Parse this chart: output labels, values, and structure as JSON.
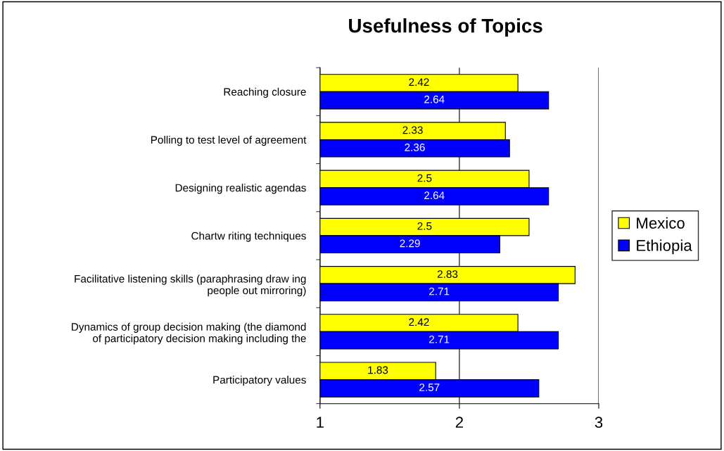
{
  "chart_data": {
    "type": "bar",
    "orientation": "horizontal",
    "title": "Usefulness of Topics",
    "categories": [
      "Reaching closure",
      "Polling to test level of agreement",
      "Designing realistic agendas",
      "Chartw riting techniques",
      "Facilitative listening skills (paraphrasing draw ing\npeople out mirroring)",
      "Dynamics of group decision making (the diamond\nof participatory decision making including the",
      "Participatory values"
    ],
    "series": [
      {
        "name": "Mexico",
        "color": "#ffff00",
        "values": [
          2.42,
          2.33,
          2.5,
          2.5,
          2.83,
          2.42,
          1.83
        ]
      },
      {
        "name": "Ethiopia",
        "color": "#0000ff",
        "values": [
          2.64,
          2.36,
          2.64,
          2.29,
          2.71,
          2.71,
          2.57
        ]
      }
    ],
    "xlim": [
      1,
      3
    ],
    "xticks": [
      1,
      2,
      3
    ],
    "grid": "x",
    "legend": "right",
    "data_labels": true
  }
}
